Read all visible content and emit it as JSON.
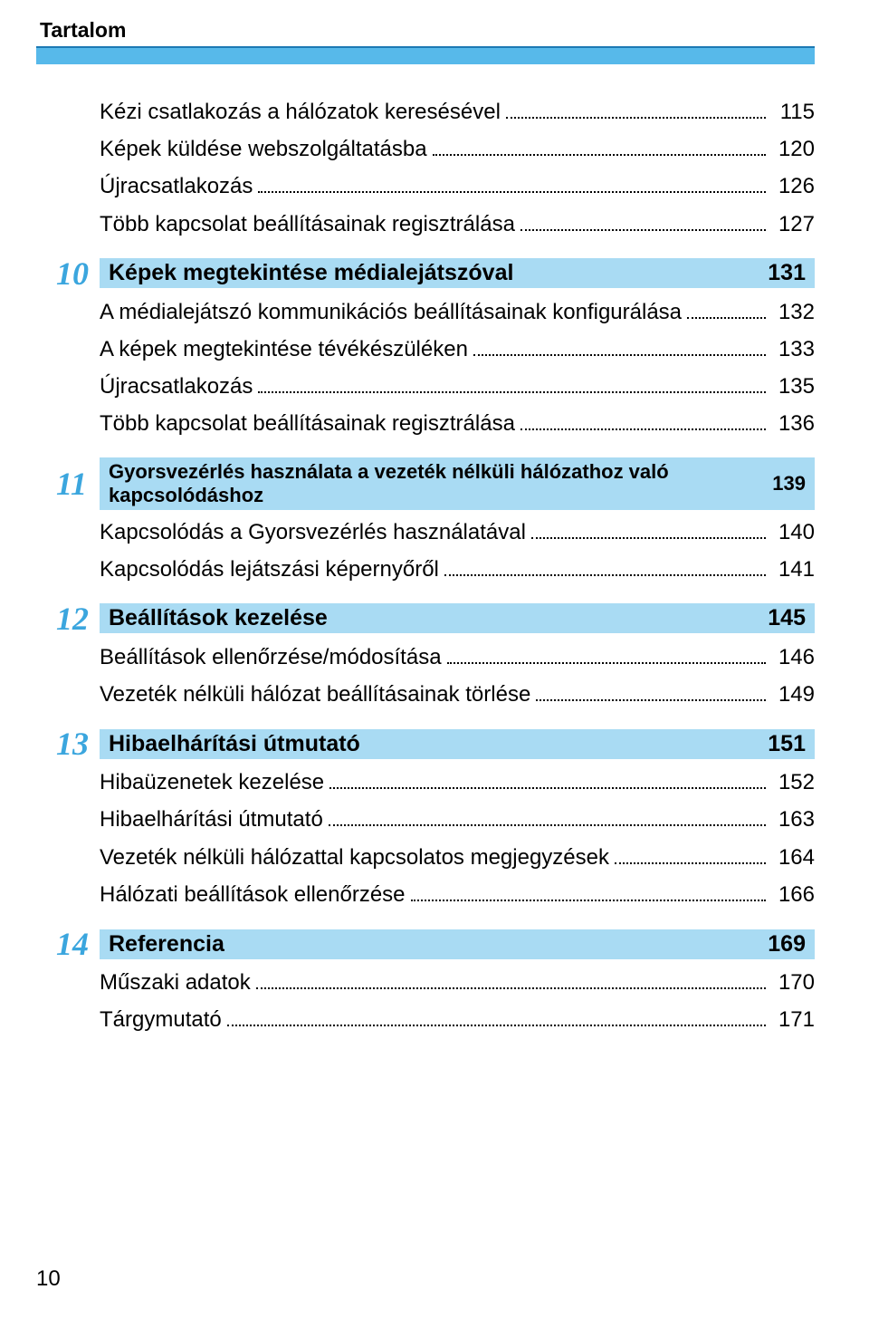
{
  "header": {
    "title": "Tartalom"
  },
  "colors": {
    "header_bar": "#57b9ea",
    "header_border": "#1c79b3",
    "chapter_num": "#3ba6de",
    "chapter_bg": "#a9dbf3",
    "text": "#000000",
    "page_bg": "#ffffff"
  },
  "pre_lines": [
    {
      "label": "Kézi csatlakozás a hálózatok keresésével",
      "page": "115"
    },
    {
      "label": "Képek küldése webszolgáltatásba",
      "page": "120"
    },
    {
      "label": "Újracsatlakozás",
      "page": "126"
    },
    {
      "label": "Több kapcsolat beállításainak regisztrálása",
      "page": "127"
    }
  ],
  "chapters": [
    {
      "num": "10",
      "title": "Képek megtekintése médialejátszóval",
      "page": "131",
      "small": false,
      "entries": [
        {
          "label": "A médialejátszó kommunikációs beállításainak konfigurálása",
          "page": "132"
        },
        {
          "label": "A képek megtekintése tévékészüléken",
          "page": "133"
        },
        {
          "label": "Újracsatlakozás",
          "page": "135"
        },
        {
          "label": "Több kapcsolat beállításainak regisztrálása",
          "page": "136"
        }
      ]
    },
    {
      "num": "11",
      "title": "Gyorsvezérlés használata a vezeték nélküli hálózathoz való kapcsolódáshoz",
      "page": "139",
      "small": true,
      "entries": [
        {
          "label": "Kapcsolódás a Gyorsvezérlés használatával",
          "page": "140"
        },
        {
          "label": "Kapcsolódás lejátszási képernyőről",
          "page": "141"
        }
      ]
    },
    {
      "num": "12",
      "title": "Beállítások kezelése",
      "page": "145",
      "small": false,
      "entries": [
        {
          "label": "Beállítások ellenőrzése/módosítása",
          "page": "146"
        },
        {
          "label": "Vezeték nélküli hálózat beállításainak törlése",
          "page": "149"
        }
      ]
    },
    {
      "num": "13",
      "title": "Hibaelhárítási útmutató",
      "page": "151",
      "small": false,
      "entries": [
        {
          "label": "Hibaüzenetek kezelése",
          "page": "152"
        },
        {
          "label": "Hibaelhárítási útmutató",
          "page": "163"
        },
        {
          "label": "Vezeték nélküli hálózattal kapcsolatos megjegyzések",
          "page": "164"
        },
        {
          "label": "Hálózati beállítások ellenőrzése",
          "page": "166"
        }
      ]
    },
    {
      "num": "14",
      "title": "Referencia",
      "page": "169",
      "small": false,
      "entries": [
        {
          "label": "Műszaki adatok",
          "page": "170"
        },
        {
          "label": "Tárgymutató",
          "page": "171"
        }
      ]
    }
  ],
  "footer": {
    "page_number": "10"
  }
}
